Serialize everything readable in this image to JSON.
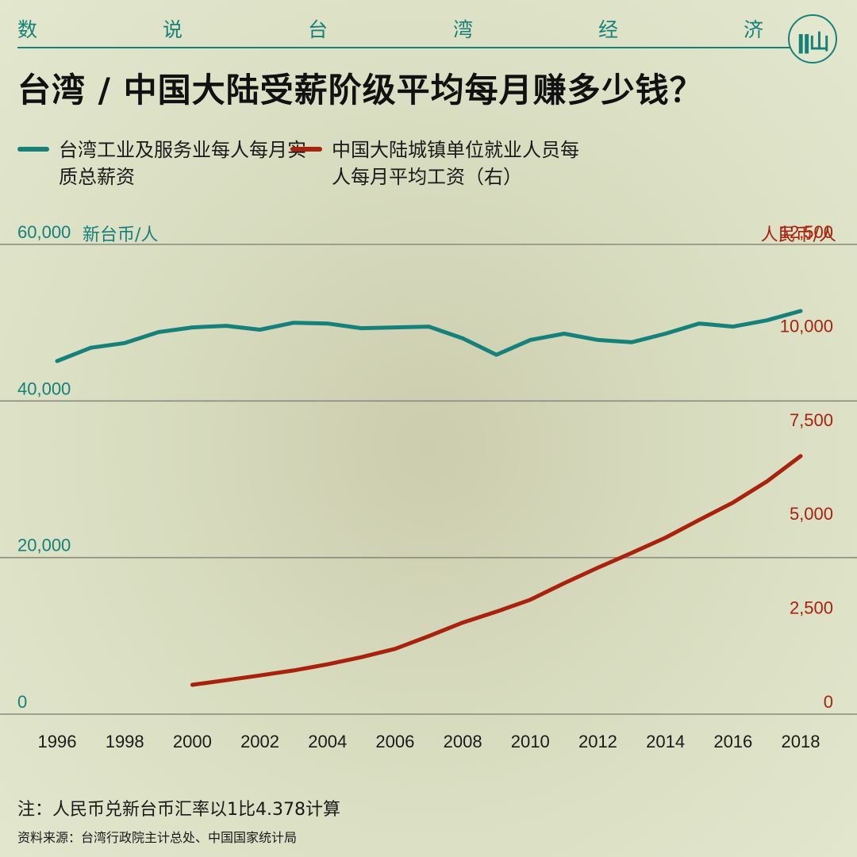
{
  "header": {
    "series_chars": [
      "数",
      "说",
      "台",
      "湾",
      "经",
      "济"
    ],
    "logo_text": "ǁ山",
    "color": "#16817b"
  },
  "title": "台湾 / 中国大陆受薪阶级平均每月赚多少钱？",
  "legend": [
    {
      "label": "台湾工业及服务业每人每月实质总薪资",
      "color": "#16817b"
    },
    {
      "label": "中国大陆城镇单位就业人员每人每月平均工资（右）",
      "color": "#a8220e"
    }
  ],
  "left_axis": {
    "unit": "新台币/人",
    "color": "#16817b",
    "range": [
      0,
      60000
    ],
    "ticks": [
      "0",
      "20,000",
      "40,000",
      "60,000"
    ]
  },
  "right_axis": {
    "unit": "人民币/人",
    "color": "#a8220e",
    "range": [
      0,
      12500
    ],
    "ticks": [
      "0",
      "2,500",
      "5,000",
      "7,500",
      "10,000",
      "12,500"
    ]
  },
  "note": "注：人民币兑新台币汇率以1比4.378计算",
  "source": "资料来源：台湾行政院主计总处、中国国家统计局",
  "chart_data": {
    "type": "line",
    "x_ticks": [
      "1996",
      "1998",
      "2000",
      "2002",
      "2004",
      "2006",
      "2008",
      "2010",
      "2012",
      "2014",
      "2016",
      "2018"
    ],
    "xlim": [
      1996,
      2018
    ],
    "grid": "horizontal",
    "series": [
      {
        "name": "台湾工业及服务业每人每月实质总薪资",
        "axis": "left",
        "color": "#16817b",
        "x": [
          1996,
          1997,
          1998,
          1999,
          2000,
          2001,
          2002,
          2003,
          2004,
          2005,
          2006,
          2007,
          2008,
          2009,
          2010,
          2011,
          2012,
          2013,
          2014,
          2015,
          2016,
          2017,
          2018
        ],
        "values": [
          45100,
          46800,
          47400,
          48800,
          49400,
          49600,
          49100,
          50000,
          49900,
          49300,
          49400,
          49500,
          48000,
          45900,
          47800,
          48600,
          47800,
          47500,
          48600,
          49900,
          49500,
          50300,
          51500
        ]
      },
      {
        "name": "中国大陆城镇单位就业人员每人每月平均工资（右）",
        "axis": "right",
        "color": "#a8220e",
        "x": [
          2000,
          2001,
          2002,
          2003,
          2004,
          2005,
          2006,
          2007,
          2008,
          2009,
          2010,
          2011,
          2012,
          2013,
          2014,
          2015,
          2016,
          2017,
          2018
        ],
        "values": [
          781,
          903,
          1031,
          1164,
          1327,
          1517,
          1738,
          2078,
          2436,
          2728,
          3045,
          3483,
          3897,
          4290,
          4697,
          5169,
          5631,
          6193,
          6868
        ]
      }
    ]
  }
}
